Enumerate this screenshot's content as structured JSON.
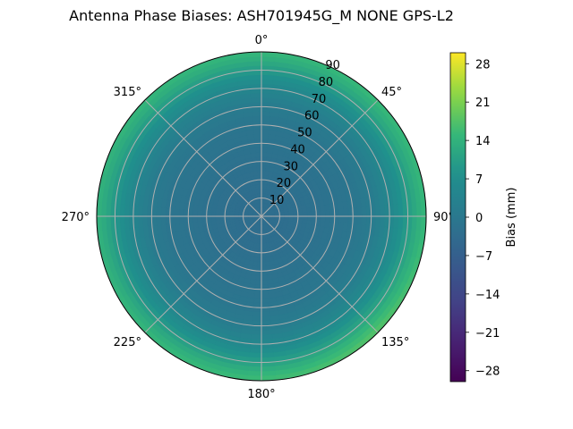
{
  "chart_data": {
    "type": "heatmap",
    "projection": "polar",
    "title": "Antenna Phase Biases: ASH701945G_M    NONE GPS-L2",
    "theta_zero": "top",
    "theta_direction": "clockwise",
    "theta_ticks": [
      "0°",
      "45°",
      "90°",
      "135°",
      "180°",
      "225°",
      "270°",
      "315°"
    ],
    "theta_tick_values": [
      0,
      45,
      90,
      135,
      180,
      225,
      270,
      315
    ],
    "r_ticks": [
      "10",
      "20",
      "30",
      "40",
      "50",
      "60",
      "70",
      "80",
      "90"
    ],
    "r_tick_values": [
      10,
      20,
      30,
      40,
      50,
      60,
      70,
      80,
      90
    ],
    "rlim": [
      0,
      90
    ],
    "grid": true,
    "colormap": "viridis",
    "color_range": [
      -30,
      30
    ],
    "colorbar": {
      "label": "Bias (mm)",
      "ticks": [
        "28",
        "21",
        "14",
        "7",
        "0",
        "−7",
        "−14",
        "−21",
        "−28"
      ],
      "tick_values": [
        28,
        21,
        14,
        7,
        0,
        -7,
        -14,
        -21,
        -28
      ],
      "location": "right"
    },
    "bias_profile_by_zenith": {
      "zenith": [
        0,
        10,
        20,
        30,
        40,
        50,
        60,
        70,
        80,
        85,
        90
      ],
      "bias_mm": [
        -3,
        -3,
        -2.5,
        -2,
        -1.5,
        -1,
        0.5,
        4,
        9,
        12,
        14
      ]
    },
    "azimuthal_enhancement": {
      "azimuth": [
        0,
        45,
        90,
        135,
        180,
        225,
        270,
        315
      ],
      "extra_bias_mm_at_rim": [
        1,
        1.5,
        1,
        4,
        2,
        1,
        0,
        1
      ]
    }
  }
}
